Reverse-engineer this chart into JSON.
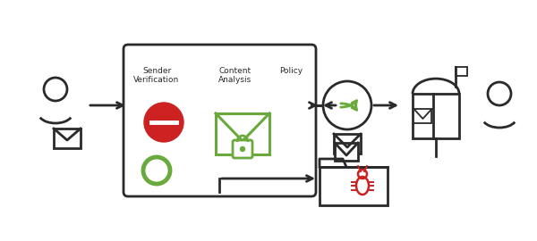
{
  "bg_color": "#ffffff",
  "dark_color": "#2a2a2a",
  "green_color": "#6aaa3c",
  "red_color": "#cc2222",
  "figsize": [
    6.0,
    2.7
  ],
  "dpi": 100,
  "label_sender": "Sender\nVerification",
  "label_content": "Content\nAnalysis",
  "label_policy": "Policy"
}
